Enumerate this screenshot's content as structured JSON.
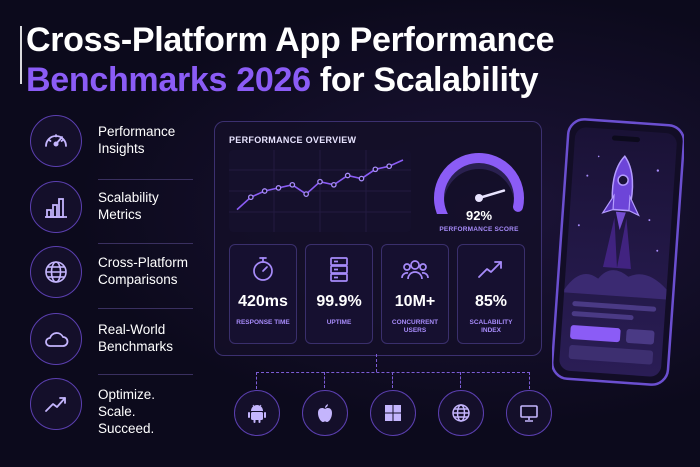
{
  "title": {
    "line1": "Cross-Platform App Performance",
    "line2_accent": "Benchmarks 2026",
    "line2_rest": " for Scalability"
  },
  "features": [
    {
      "label": "Performance\nInsights",
      "icon": "speedometer-icon"
    },
    {
      "label": "Scalability\nMetrics",
      "icon": "bar-chart-icon"
    },
    {
      "label": "Cross-Platform\nComparisons",
      "icon": "globe-icon"
    },
    {
      "label": "Real-World\nBenchmarks",
      "icon": "cloud-icon"
    },
    {
      "label": "Optimize.\nScale. Succeed.",
      "icon": "trend-up-icon"
    }
  ],
  "dashboard": {
    "title": "PERFORMANCE OVERVIEW",
    "score_value": "92%",
    "score_label": "PERFORMANCE SCORE",
    "score_fraction": 0.92,
    "trend_values": [
      2,
      4,
      5,
      5.5,
      6,
      4.5,
      6.5,
      6,
      7.5,
      7,
      8.5,
      9,
      10
    ],
    "metrics": [
      {
        "value": "420ms",
        "label": "RESPONSE TIME",
        "icon": "stopwatch-icon"
      },
      {
        "value": "99.9%",
        "label": "UPTIME",
        "icon": "server-icon"
      },
      {
        "value": "10M+",
        "label": "CONCURRENT\nUSERS",
        "icon": "users-icon"
      },
      {
        "value": "85%",
        "label": "SCALABILITY\nINDEX",
        "icon": "trend-icon"
      }
    ]
  },
  "platforms": [
    "android-icon",
    "apple-icon",
    "windows-icon",
    "web-globe-icon",
    "desktop-monitor-icon"
  ],
  "colors": {
    "accent": "#8b5cf6",
    "background": "#0c0a1c",
    "label": "#a78bfa"
  }
}
